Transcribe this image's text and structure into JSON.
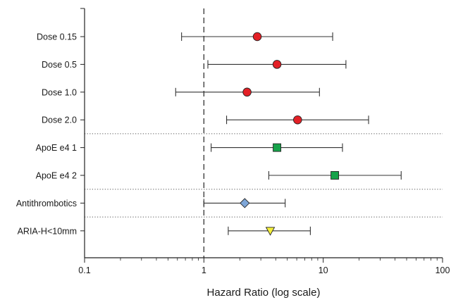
{
  "chart_data": {
    "type": "forest",
    "xlabel": "Hazard Ratio (log scale)",
    "xscale": "log",
    "xlim": [
      0.1,
      100
    ],
    "xticks": [
      0.1,
      1,
      10,
      100
    ],
    "xtick_labels": [
      "0.1",
      "1",
      "10",
      "100"
    ],
    "reference_line": 1,
    "rows": [
      {
        "label": "Dose 0.15",
        "hr": 2.8,
        "lower": 0.65,
        "upper": 12.0,
        "marker": "circle",
        "color": "#e32026"
      },
      {
        "label": "Dose 0.5",
        "hr": 4.1,
        "lower": 1.08,
        "upper": 15.5,
        "marker": "circle",
        "color": "#e32026"
      },
      {
        "label": "Dose 1.0",
        "hr": 2.3,
        "lower": 0.58,
        "upper": 9.3,
        "marker": "circle",
        "color": "#e32026"
      },
      {
        "label": "Dose 2.0",
        "hr": 6.1,
        "lower": 1.55,
        "upper": 24.0,
        "marker": "circle",
        "color": "#e32026"
      },
      {
        "label": "ApoE e4 1",
        "hr": 4.1,
        "lower": 1.15,
        "upper": 14.5,
        "marker": "square",
        "color": "#16a34a"
      },
      {
        "label": "ApoE e4 2",
        "hr": 12.5,
        "lower": 3.5,
        "upper": 45.0,
        "marker": "square",
        "color": "#16a34a"
      },
      {
        "label": "Antithrombotics",
        "hr": 2.2,
        "lower": 1.0,
        "upper": 4.8,
        "marker": "diamond",
        "color": "#7ea6d8"
      },
      {
        "label": "ARIA-H<10mm",
        "hr": 3.6,
        "lower": 1.6,
        "upper": 7.8,
        "marker": "triangle-down",
        "color": "#f5f03a"
      }
    ],
    "group_separators_after": [
      3,
      5,
      6
    ]
  }
}
